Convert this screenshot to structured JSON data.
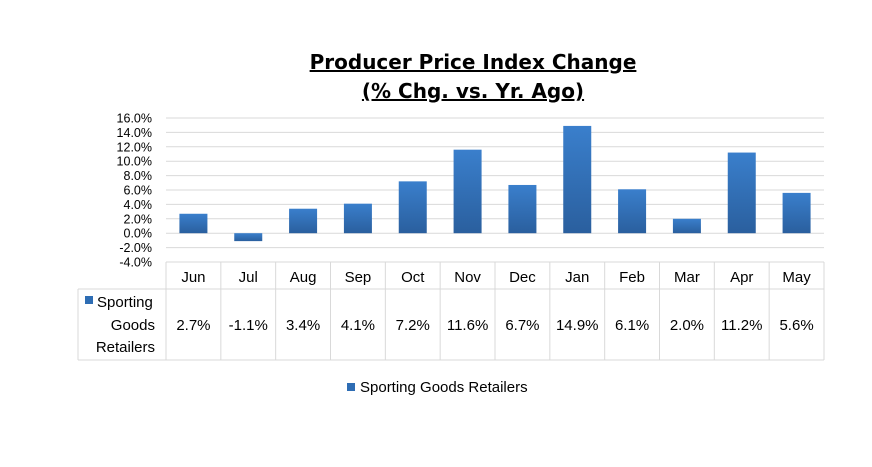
{
  "chart_data": {
    "type": "bar",
    "title": [
      "Producer Price Index Change",
      "(% Chg. vs. Yr. Ago)"
    ],
    "categories": [
      "Jun",
      "Jul",
      "Aug",
      "Sep",
      "Oct",
      "Nov",
      "Dec",
      "Jan",
      "Feb",
      "Mar",
      "Apr",
      "May"
    ],
    "series": [
      {
        "name": "Sporting Goods Retailers",
        "name_lines": [
          "Sporting",
          "Goods",
          "Retailers"
        ],
        "values": [
          2.7,
          -1.1,
          3.4,
          4.1,
          7.2,
          11.6,
          6.7,
          14.9,
          6.1,
          2.0,
          11.2,
          5.6
        ],
        "labels": [
          "2.7%",
          "-1.1%",
          "3.4%",
          "4.1%",
          "7.2%",
          "11.6%",
          "6.7%",
          "14.9%",
          "6.1%",
          "2.0%",
          "11.2%",
          "5.6%"
        ],
        "color": "#2e6db4"
      }
    ],
    "ylim": [
      -4,
      16
    ],
    "yticks": [
      "16.0%",
      "14.0%",
      "12.0%",
      "10.0%",
      "8.0%",
      "6.0%",
      "4.0%",
      "2.0%",
      "0.0%",
      "-2.0%",
      "-4.0%"
    ],
    "ytick_values": [
      16,
      14,
      12,
      10,
      8,
      6,
      4,
      2,
      0,
      -2,
      -4
    ],
    "grid": true,
    "data_table": true,
    "legend_position": "bottom"
  }
}
